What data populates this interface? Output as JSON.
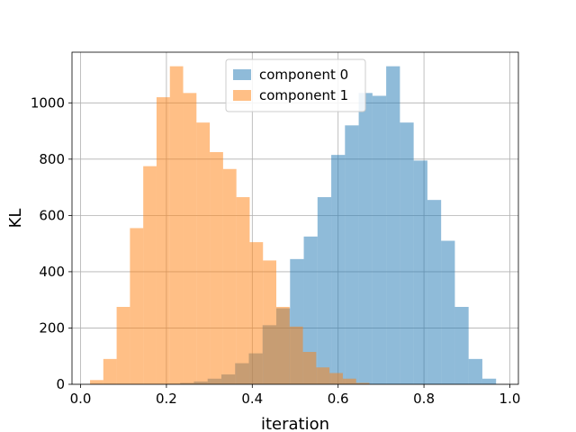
{
  "chart_data": {
    "type": "histogram",
    "xlabel": "iteration",
    "ylabel": "KL",
    "xlim": [
      -0.02,
      1.02
    ],
    "ylim": [
      0,
      1180
    ],
    "grid": true,
    "legend_position": "top-center",
    "x_ticks": [
      0.0,
      0.2,
      0.4,
      0.6,
      0.8,
      1.0
    ],
    "x_tick_labels": [
      "0.0",
      "0.2",
      "0.4",
      "0.6",
      "0.8",
      "1.0"
    ],
    "y_ticks": [
      0,
      200,
      400,
      600,
      800,
      1000
    ],
    "y_tick_labels": [
      "0",
      "200",
      "400",
      "600",
      "800",
      "1000"
    ],
    "series": [
      {
        "name": "component 0",
        "color": "#1f77b4",
        "opacity": 0.5,
        "bin_edges": [
          0.2,
          0.232,
          0.264,
          0.296,
          0.328,
          0.36,
          0.392,
          0.424,
          0.456,
          0.488,
          0.52,
          0.552,
          0.584,
          0.616,
          0.648,
          0.68,
          0.712,
          0.744,
          0.776,
          0.808,
          0.84,
          0.872,
          0.904,
          0.936,
          0.968
        ],
        "counts": [
          2,
          5,
          10,
          20,
          35,
          75,
          110,
          210,
          270,
          445,
          525,
          665,
          815,
          920,
          1035,
          1025,
          1130,
          930,
          795,
          655,
          510,
          275,
          90,
          20
        ]
      },
      {
        "name": "component 1",
        "color": "#ff7f0e",
        "opacity": 0.5,
        "bin_edges": [
          0.022,
          0.053,
          0.084,
          0.115,
          0.146,
          0.177,
          0.208,
          0.239,
          0.27,
          0.301,
          0.332,
          0.363,
          0.394,
          0.425,
          0.456,
          0.487,
          0.518,
          0.549,
          0.58,
          0.611,
          0.642,
          0.673
        ],
        "counts": [
          15,
          90,
          275,
          555,
          775,
          1020,
          1130,
          1035,
          930,
          825,
          765,
          665,
          505,
          440,
          275,
          205,
          115,
          60,
          40,
          20,
          5
        ]
      }
    ]
  }
}
